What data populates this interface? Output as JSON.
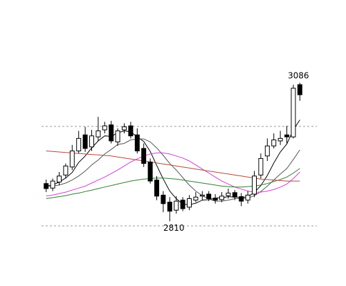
{
  "chart_data": {
    "type": "candlestick",
    "ylim": [
      2780,
      3120
    ],
    "up_color": "#ffffff",
    "down_color": "#000000",
    "edge_color": "#000000",
    "open": [
      2885,
      2876,
      2888,
      2902,
      2918,
      2950,
      2982,
      2958,
      2978,
      2992,
      3002,
      2968,
      2992,
      3000,
      2982,
      2955,
      2928,
      2892,
      2862,
      2848,
      2832,
      2852,
      2838,
      2852,
      2860,
      2864,
      2856,
      2853,
      2861,
      2867,
      2859,
      2852,
      2864,
      2902,
      2940,
      2960,
      2970,
      2982,
      2978,
      3082
    ],
    "high": [
      2893,
      2895,
      2908,
      2925,
      2962,
      2990,
      2998,
      2992,
      3018,
      3008,
      3010,
      2995,
      3005,
      3008,
      2995,
      2965,
      2935,
      2900,
      2870,
      2858,
      2860,
      2858,
      2862,
      2868,
      2870,
      2870,
      2864,
      2868,
      2875,
      2872,
      2866,
      2870,
      2910,
      2945,
      2975,
      2985,
      2990,
      3000,
      3082,
      3086
    ],
    "low": [
      2868,
      2870,
      2882,
      2895,
      2912,
      2945,
      2948,
      2950,
      2970,
      2985,
      2965,
      2960,
      2985,
      2975,
      2945,
      2918,
      2885,
      2852,
      2828,
      2810,
      2825,
      2830,
      2832,
      2848,
      2852,
      2850,
      2845,
      2848,
      2855,
      2852,
      2840,
      2845,
      2858,
      2895,
      2930,
      2955,
      2962,
      2965,
      2975,
      3050
    ],
    "close": [
      2875,
      2890,
      2900,
      2920,
      2950,
      2975,
      2955,
      2980,
      2990,
      3000,
      2970,
      2990,
      2998,
      2980,
      2950,
      2925,
      2890,
      2860,
      2845,
      2830,
      2850,
      2835,
      2855,
      2858,
      2862,
      2855,
      2852,
      2860,
      2866,
      2858,
      2850,
      2862,
      2900,
      2935,
      2960,
      2972,
      2975,
      2978,
      3075,
      3062
    ],
    "lines": [
      {
        "color": "#000000",
        "values": [
          2880,
          2882,
          2888,
          2896,
          2907,
          2927,
          2940,
          2956,
          2970,
          2980,
          2979,
          2986,
          2990,
          2988,
          2978,
          2969,
          2949,
          2921,
          2894,
          2870,
          2855,
          2844,
          2843,
          2846,
          2852,
          2853,
          2856,
          2857,
          2859,
          2858,
          2857,
          2859,
          2867,
          2881,
          2901,
          2926,
          2948,
          2964,
          2992,
          3012
        ]
      },
      {
        "color": "#555555",
        "values": [
          2880,
          2880,
          2882,
          2886,
          2892,
          2900,
          2910,
          2922,
          2932,
          2944,
          2953,
          2963,
          2965,
          2972,
          2974,
          2974,
          2968,
          2956,
          2941,
          2925,
          2912,
          2897,
          2882,
          2870,
          2861,
          2854,
          2850,
          2850,
          2852,
          2855,
          2855,
          2856,
          2861,
          2869,
          2880,
          2892,
          2904,
          2915,
          2933,
          2952
        ]
      },
      {
        "color": "#d63bd6",
        "values": [
          2860,
          2862,
          2865,
          2868,
          2872,
          2876,
          2880,
          2886,
          2892,
          2898,
          2905,
          2912,
          2920,
          2928,
          2934,
          2940,
          2944,
          2946,
          2946,
          2944,
          2940,
          2936,
          2930,
          2922,
          2914,
          2906,
          2898,
          2890,
          2884,
          2878,
          2874,
          2870,
          2868,
          2868,
          2870,
          2873,
          2878,
          2884,
          2895,
          2908
        ]
      },
      {
        "color": "#2e7d32",
        "values": [
          2855,
          2857,
          2859,
          2861,
          2864,
          2866,
          2869,
          2872,
          2875,
          2878,
          2881,
          2884,
          2887,
          2890,
          2892,
          2894,
          2895,
          2896,
          2896,
          2895,
          2894,
          2892,
          2890,
          2888,
          2886,
          2884,
          2882,
          2880,
          2879,
          2878,
          2878,
          2879,
          2880,
          2882,
          2885,
          2889,
          2893,
          2898,
          2906,
          2915
        ]
      },
      {
        "color": "#b5473a",
        "values": [
          2950,
          2949,
          2948,
          2947,
          2946,
          2945,
          2944,
          2943,
          2942,
          2941,
          2940,
          2938,
          2936,
          2934,
          2932,
          2930,
          2928,
          2926,
          2924,
          2922,
          2920,
          2918,
          2916,
          2914,
          2912,
          2910,
          2908,
          2906,
          2904,
          2902,
          2900,
          2898,
          2896,
          2894,
          2893,
          2892,
          2891,
          2890,
          2890,
          2890
        ]
      }
    ]
  }
}
